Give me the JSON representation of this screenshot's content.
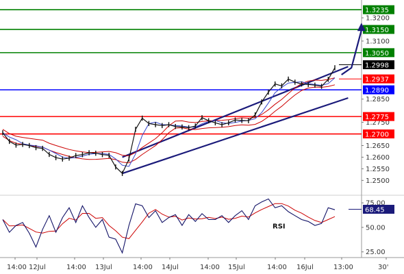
{
  "chart_data": [
    {
      "type": "line",
      "panel": "price",
      "title": "",
      "xlabel": "",
      "ylabel": "",
      "ylim": [
        1.2445,
        1.3262
      ],
      "grid": false,
      "x_tick_labels": [
        "14:00",
        "12Jul",
        "14:00",
        "13Jul",
        "14:00",
        "14Jul",
        "14:00",
        "15Jul",
        "14:00",
        "16Jul",
        "13:00",
        "30'"
      ],
      "y_tick_labels": [
        "1.3235",
        "1.3200",
        "1.3150",
        "1.3100",
        "1.3050",
        "1.2998",
        "1.2937",
        "1.2890",
        "1.2850",
        "1.2775",
        "1.2750",
        "1.2700",
        "1.2650",
        "1.2600",
        "1.2550",
        "1.2500"
      ],
      "y_ticks": [
        1.32,
        1.31,
        1.285,
        1.275,
        1.265,
        1.26,
        1.255,
        1.25
      ],
      "price_series": [
        {
          "t": 0,
          "v": 1.2705
        },
        {
          "t": 1,
          "v": 1.2668
        },
        {
          "t": 2,
          "v": 1.2652
        },
        {
          "t": 3,
          "v": 1.2655
        },
        {
          "t": 4,
          "v": 1.265
        },
        {
          "t": 5,
          "v": 1.2641
        },
        {
          "t": 6,
          "v": 1.2638
        },
        {
          "t": 7,
          "v": 1.2612
        },
        {
          "t": 8,
          "v": 1.2598
        },
        {
          "t": 9,
          "v": 1.2592
        },
        {
          "t": 10,
          "v": 1.2596
        },
        {
          "t": 11,
          "v": 1.2607
        },
        {
          "t": 12,
          "v": 1.2611
        },
        {
          "t": 13,
          "v": 1.2619
        },
        {
          "t": 14,
          "v": 1.2617
        },
        {
          "t": 15,
          "v": 1.2611
        },
        {
          "t": 16,
          "v": 1.2608
        },
        {
          "t": 17,
          "v": 1.2558
        },
        {
          "t": 18,
          "v": 1.253
        },
        {
          "t": 19,
          "v": 1.2592
        },
        {
          "t": 20,
          "v": 1.272
        },
        {
          "t": 21,
          "v": 1.2768
        },
        {
          "t": 22,
          "v": 1.2745
        },
        {
          "t": 23,
          "v": 1.274
        },
        {
          "t": 24,
          "v": 1.2736
        },
        {
          "t": 25,
          "v": 1.274
        },
        {
          "t": 26,
          "v": 1.2732
        },
        {
          "t": 27,
          "v": 1.273
        },
        {
          "t": 28,
          "v": 1.2727
        },
        {
          "t": 29,
          "v": 1.2734
        },
        {
          "t": 30,
          "v": 1.277
        },
        {
          "t": 31,
          "v": 1.2757
        },
        {
          "t": 32,
          "v": 1.2748
        },
        {
          "t": 33,
          "v": 1.274
        },
        {
          "t": 34,
          "v": 1.2748
        },
        {
          "t": 35,
          "v": 1.276
        },
        {
          "t": 36,
          "v": 1.2758
        },
        {
          "t": 37,
          "v": 1.2757
        },
        {
          "t": 38,
          "v": 1.2782
        },
        {
          "t": 39,
          "v": 1.2838
        },
        {
          "t": 40,
          "v": 1.288
        },
        {
          "t": 41,
          "v": 1.2915
        },
        {
          "t": 42,
          "v": 1.2907
        },
        {
          "t": 43,
          "v": 1.2936
        },
        {
          "t": 44,
          "v": 1.2923
        },
        {
          "t": 45,
          "v": 1.2915
        },
        {
          "t": 46,
          "v": 1.2913
        },
        {
          "t": 47,
          "v": 1.291
        },
        {
          "t": 48,
          "v": 1.2905
        },
        {
          "t": 49,
          "v": 1.2935
        },
        {
          "t": 50,
          "v": 1.2985
        }
      ],
      "horizontal_levels": [
        {
          "value": 1.3235,
          "label": "1.3235",
          "color": "#008000",
          "kind": "resistance"
        },
        {
          "value": 1.315,
          "label": "1.3150",
          "color": "#008000",
          "kind": "resistance"
        },
        {
          "value": 1.305,
          "label": "1.3050",
          "color": "#008000",
          "kind": "resistance"
        },
        {
          "value": 1.2998,
          "label": "1.2998",
          "color": "#000000",
          "kind": "last-price"
        },
        {
          "value": 1.2937,
          "label": "1.2937",
          "color": "#ff0000",
          "kind": "moving-average"
        },
        {
          "value": 1.289,
          "label": "1.2890",
          "color": "#0000ff",
          "kind": "pivot"
        },
        {
          "value": 1.2775,
          "label": "1.2775",
          "color": "#ff0000",
          "kind": "support"
        },
        {
          "value": 1.27,
          "label": "1.2700",
          "color": "#ff0000",
          "kind": "support"
        }
      ],
      "trend_channel": [
        {
          "from": {
            "t": 18,
            "v": 1.26
          },
          "to": {
            "t": 52,
            "v": 1.299
          }
        },
        {
          "from": {
            "t": 18,
            "v": 1.253
          },
          "to": {
            "t": 52,
            "v": 1.2855
          }
        }
      ],
      "forecast_arrow": {
        "from": {
          "t": 51,
          "v": 1.2955
        },
        "via": {
          "t": 52.5,
          "v": 1.2985
        },
        "to": {
          "t": 54,
          "v": 1.317
        }
      }
    },
    {
      "type": "line",
      "panel": "rsi",
      "title": "",
      "annotation": "RSI",
      "ylim": [
        22,
        80
      ],
      "y_tick_labels": [
        "75.00",
        "68.45",
        "50.00",
        "25.00"
      ],
      "y_ticks": [
        75,
        50,
        25
      ],
      "last_value": 68.45,
      "rsi_series": [
        {
          "t": 0,
          "v": 58
        },
        {
          "t": 1,
          "v": 45
        },
        {
          "t": 2,
          "v": 52
        },
        {
          "t": 3,
          "v": 55
        },
        {
          "t": 4,
          "v": 44
        },
        {
          "t": 5,
          "v": 30
        },
        {
          "t": 6,
          "v": 48
        },
        {
          "t": 7,
          "v": 62
        },
        {
          "t": 8,
          "v": 45
        },
        {
          "t": 9,
          "v": 60
        },
        {
          "t": 10,
          "v": 70
        },
        {
          "t": 11,
          "v": 55
        },
        {
          "t": 12,
          "v": 72
        },
        {
          "t": 13,
          "v": 60
        },
        {
          "t": 14,
          "v": 50
        },
        {
          "t": 15,
          "v": 58
        },
        {
          "t": 16,
          "v": 40
        },
        {
          "t": 17,
          "v": 38
        },
        {
          "t": 18,
          "v": 24
        },
        {
          "t": 19,
          "v": 52
        },
        {
          "t": 20,
          "v": 74
        },
        {
          "t": 21,
          "v": 72
        },
        {
          "t": 22,
          "v": 60
        },
        {
          "t": 23,
          "v": 67
        },
        {
          "t": 24,
          "v": 55
        },
        {
          "t": 25,
          "v": 60
        },
        {
          "t": 26,
          "v": 63
        },
        {
          "t": 27,
          "v": 52
        },
        {
          "t": 28,
          "v": 63
        },
        {
          "t": 29,
          "v": 56
        },
        {
          "t": 30,
          "v": 64
        },
        {
          "t": 31,
          "v": 58
        },
        {
          "t": 32,
          "v": 58
        },
        {
          "t": 33,
          "v": 62
        },
        {
          "t": 34,
          "v": 55
        },
        {
          "t": 35,
          "v": 62
        },
        {
          "t": 36,
          "v": 67
        },
        {
          "t": 37,
          "v": 58
        },
        {
          "t": 38,
          "v": 72
        },
        {
          "t": 39,
          "v": 76
        },
        {
          "t": 40,
          "v": 79
        },
        {
          "t": 41,
          "v": 70
        },
        {
          "t": 42,
          "v": 72
        },
        {
          "t": 43,
          "v": 66
        },
        {
          "t": 44,
          "v": 62
        },
        {
          "t": 45,
          "v": 58
        },
        {
          "t": 46,
          "v": 56
        },
        {
          "t": 47,
          "v": 52
        },
        {
          "t": 48,
          "v": 54
        },
        {
          "t": 49,
          "v": 70
        },
        {
          "t": 50,
          "v": 68
        }
      ]
    }
  ]
}
